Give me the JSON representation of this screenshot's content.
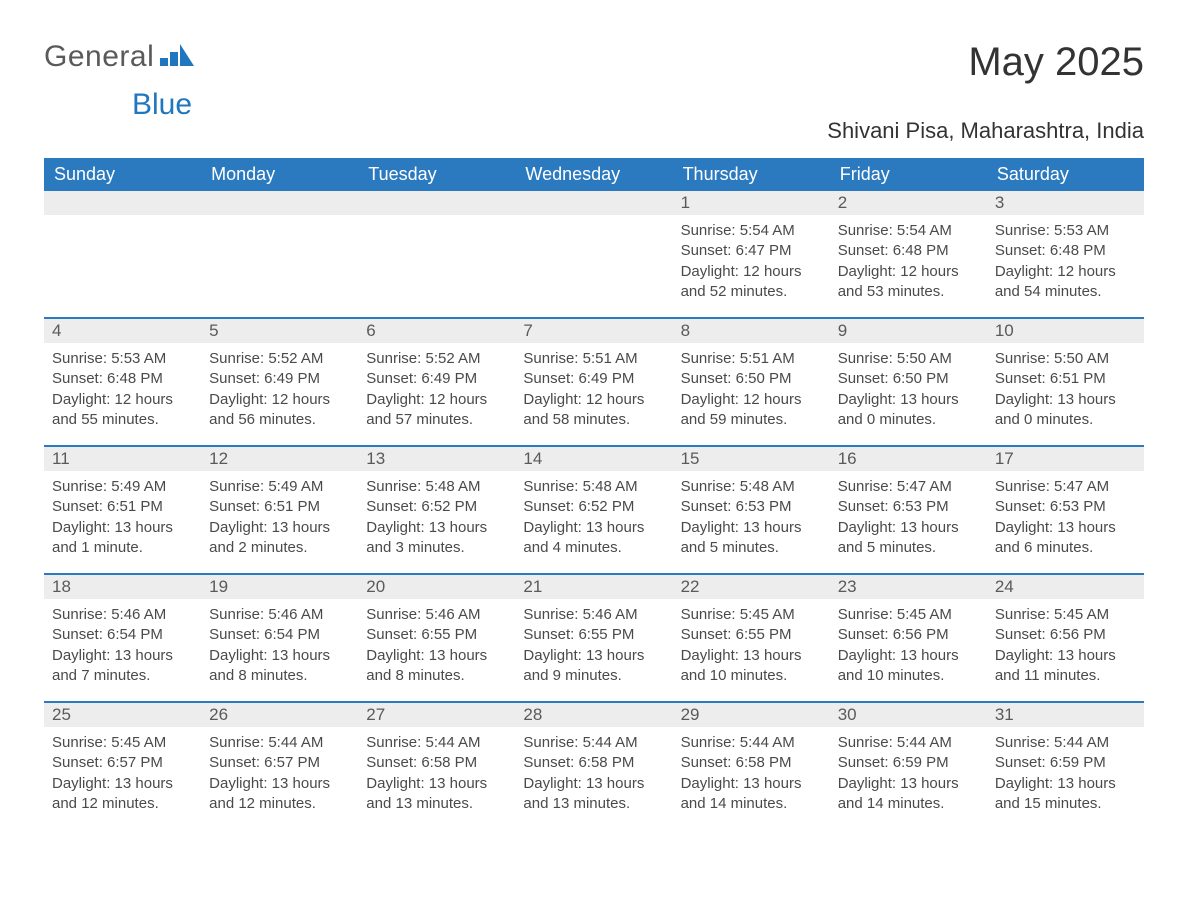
{
  "brand": {
    "word1": "General",
    "word2": "Blue"
  },
  "title": "May 2025",
  "subtitle": "Shivani Pisa, Maharashtra, India",
  "colors": {
    "header_bg": "#2b7abf",
    "header_fg": "#ffffff",
    "daynum_bg": "#ededed",
    "text": "#4a4a4a",
    "accent": "#1f77c0"
  },
  "day_headers": [
    "Sunday",
    "Monday",
    "Tuesday",
    "Wednesday",
    "Thursday",
    "Friday",
    "Saturday"
  ],
  "weeks": [
    [
      {
        "empty": true
      },
      {
        "empty": true
      },
      {
        "empty": true
      },
      {
        "empty": true
      },
      {
        "num": "1",
        "sunrise": "Sunrise: 5:54 AM",
        "sunset": "Sunset: 6:47 PM",
        "day1": "Daylight: 12 hours",
        "day2": "and 52 minutes."
      },
      {
        "num": "2",
        "sunrise": "Sunrise: 5:54 AM",
        "sunset": "Sunset: 6:48 PM",
        "day1": "Daylight: 12 hours",
        "day2": "and 53 minutes."
      },
      {
        "num": "3",
        "sunrise": "Sunrise: 5:53 AM",
        "sunset": "Sunset: 6:48 PM",
        "day1": "Daylight: 12 hours",
        "day2": "and 54 minutes."
      }
    ],
    [
      {
        "num": "4",
        "sunrise": "Sunrise: 5:53 AM",
        "sunset": "Sunset: 6:48 PM",
        "day1": "Daylight: 12 hours",
        "day2": "and 55 minutes."
      },
      {
        "num": "5",
        "sunrise": "Sunrise: 5:52 AM",
        "sunset": "Sunset: 6:49 PM",
        "day1": "Daylight: 12 hours",
        "day2": "and 56 minutes."
      },
      {
        "num": "6",
        "sunrise": "Sunrise: 5:52 AM",
        "sunset": "Sunset: 6:49 PM",
        "day1": "Daylight: 12 hours",
        "day2": "and 57 minutes."
      },
      {
        "num": "7",
        "sunrise": "Sunrise: 5:51 AM",
        "sunset": "Sunset: 6:49 PM",
        "day1": "Daylight: 12 hours",
        "day2": "and 58 minutes."
      },
      {
        "num": "8",
        "sunrise": "Sunrise: 5:51 AM",
        "sunset": "Sunset: 6:50 PM",
        "day1": "Daylight: 12 hours",
        "day2": "and 59 minutes."
      },
      {
        "num": "9",
        "sunrise": "Sunrise: 5:50 AM",
        "sunset": "Sunset: 6:50 PM",
        "day1": "Daylight: 13 hours",
        "day2": "and 0 minutes."
      },
      {
        "num": "10",
        "sunrise": "Sunrise: 5:50 AM",
        "sunset": "Sunset: 6:51 PM",
        "day1": "Daylight: 13 hours",
        "day2": "and 0 minutes."
      }
    ],
    [
      {
        "num": "11",
        "sunrise": "Sunrise: 5:49 AM",
        "sunset": "Sunset: 6:51 PM",
        "day1": "Daylight: 13 hours",
        "day2": "and 1 minute."
      },
      {
        "num": "12",
        "sunrise": "Sunrise: 5:49 AM",
        "sunset": "Sunset: 6:51 PM",
        "day1": "Daylight: 13 hours",
        "day2": "and 2 minutes."
      },
      {
        "num": "13",
        "sunrise": "Sunrise: 5:48 AM",
        "sunset": "Sunset: 6:52 PM",
        "day1": "Daylight: 13 hours",
        "day2": "and 3 minutes."
      },
      {
        "num": "14",
        "sunrise": "Sunrise: 5:48 AM",
        "sunset": "Sunset: 6:52 PM",
        "day1": "Daylight: 13 hours",
        "day2": "and 4 minutes."
      },
      {
        "num": "15",
        "sunrise": "Sunrise: 5:48 AM",
        "sunset": "Sunset: 6:53 PM",
        "day1": "Daylight: 13 hours",
        "day2": "and 5 minutes."
      },
      {
        "num": "16",
        "sunrise": "Sunrise: 5:47 AM",
        "sunset": "Sunset: 6:53 PM",
        "day1": "Daylight: 13 hours",
        "day2": "and 5 minutes."
      },
      {
        "num": "17",
        "sunrise": "Sunrise: 5:47 AM",
        "sunset": "Sunset: 6:53 PM",
        "day1": "Daylight: 13 hours",
        "day2": "and 6 minutes."
      }
    ],
    [
      {
        "num": "18",
        "sunrise": "Sunrise: 5:46 AM",
        "sunset": "Sunset: 6:54 PM",
        "day1": "Daylight: 13 hours",
        "day2": "and 7 minutes."
      },
      {
        "num": "19",
        "sunrise": "Sunrise: 5:46 AM",
        "sunset": "Sunset: 6:54 PM",
        "day1": "Daylight: 13 hours",
        "day2": "and 8 minutes."
      },
      {
        "num": "20",
        "sunrise": "Sunrise: 5:46 AM",
        "sunset": "Sunset: 6:55 PM",
        "day1": "Daylight: 13 hours",
        "day2": "and 8 minutes."
      },
      {
        "num": "21",
        "sunrise": "Sunrise: 5:46 AM",
        "sunset": "Sunset: 6:55 PM",
        "day1": "Daylight: 13 hours",
        "day2": "and 9 minutes."
      },
      {
        "num": "22",
        "sunrise": "Sunrise: 5:45 AM",
        "sunset": "Sunset: 6:55 PM",
        "day1": "Daylight: 13 hours",
        "day2": "and 10 minutes."
      },
      {
        "num": "23",
        "sunrise": "Sunrise: 5:45 AM",
        "sunset": "Sunset: 6:56 PM",
        "day1": "Daylight: 13 hours",
        "day2": "and 10 minutes."
      },
      {
        "num": "24",
        "sunrise": "Sunrise: 5:45 AM",
        "sunset": "Sunset: 6:56 PM",
        "day1": "Daylight: 13 hours",
        "day2": "and 11 minutes."
      }
    ],
    [
      {
        "num": "25",
        "sunrise": "Sunrise: 5:45 AM",
        "sunset": "Sunset: 6:57 PM",
        "day1": "Daylight: 13 hours",
        "day2": "and 12 minutes."
      },
      {
        "num": "26",
        "sunrise": "Sunrise: 5:44 AM",
        "sunset": "Sunset: 6:57 PM",
        "day1": "Daylight: 13 hours",
        "day2": "and 12 minutes."
      },
      {
        "num": "27",
        "sunrise": "Sunrise: 5:44 AM",
        "sunset": "Sunset: 6:58 PM",
        "day1": "Daylight: 13 hours",
        "day2": "and 13 minutes."
      },
      {
        "num": "28",
        "sunrise": "Sunrise: 5:44 AM",
        "sunset": "Sunset: 6:58 PM",
        "day1": "Daylight: 13 hours",
        "day2": "and 13 minutes."
      },
      {
        "num": "29",
        "sunrise": "Sunrise: 5:44 AM",
        "sunset": "Sunset: 6:58 PM",
        "day1": "Daylight: 13 hours",
        "day2": "and 14 minutes."
      },
      {
        "num": "30",
        "sunrise": "Sunrise: 5:44 AM",
        "sunset": "Sunset: 6:59 PM",
        "day1": "Daylight: 13 hours",
        "day2": "and 14 minutes."
      },
      {
        "num": "31",
        "sunrise": "Sunrise: 5:44 AM",
        "sunset": "Sunset: 6:59 PM",
        "day1": "Daylight: 13 hours",
        "day2": "and 15 minutes."
      }
    ]
  ]
}
